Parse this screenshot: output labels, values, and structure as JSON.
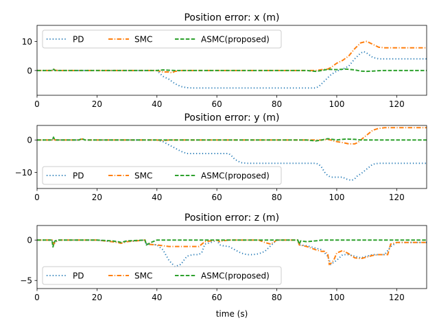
{
  "chart_data": [
    {
      "type": "line",
      "title": "Position error: x (m)",
      "xlabel": "",
      "ylabel": "",
      "xlim": [
        0,
        130
      ],
      "ylim": [
        -8.5,
        15.5
      ],
      "xticks": [
        0,
        20,
        40,
        60,
        80,
        100,
        120
      ],
      "yticks": [
        0,
        10
      ],
      "grid": false,
      "legend": "top-left",
      "series": [
        {
          "name": "PD",
          "style": "dotted",
          "color": "#1f77b4",
          "x": [
            0,
            5,
            5.5,
            6,
            7,
            40,
            41,
            42,
            44,
            46,
            48,
            50,
            52,
            60,
            70,
            80,
            90,
            93,
            94,
            96,
            98,
            100,
            102,
            104,
            106,
            108,
            109,
            110,
            112,
            114,
            116,
            120,
            125,
            130
          ],
          "y": [
            0,
            0,
            0.6,
            0.1,
            0,
            0,
            -1,
            -2,
            -3,
            -4.5,
            -5.5,
            -5.9,
            -6,
            -6,
            -6,
            -6,
            -6,
            -6,
            -5.5,
            -3.5,
            -1.5,
            -0.2,
            0.5,
            1.5,
            4,
            6,
            6.5,
            6,
            4.5,
            4,
            4,
            4,
            4,
            4
          ]
        },
        {
          "name": "SMC",
          "style": "dashdot",
          "color": "#ff7f0e",
          "x": [
            0,
            5,
            5.5,
            6,
            7,
            40,
            42,
            44,
            45,
            46,
            48,
            60,
            80,
            90,
            93,
            95,
            97,
            98,
            100,
            102,
            104,
            106,
            108,
            110,
            112,
            114,
            116,
            120,
            125,
            130
          ],
          "y": [
            0,
            0,
            0.5,
            0.1,
            0,
            0,
            -0.5,
            -0.5,
            -0.8,
            -0.3,
            0,
            0,
            0,
            0,
            0,
            0.3,
            0.5,
            1,
            2.5,
            3.5,
            5,
            7.5,
            9.5,
            10,
            9,
            8,
            7.8,
            7.8,
            7.8,
            7.8
          ]
        },
        {
          "name": "ASMC(proposed)",
          "style": "dashed",
          "color": "#2ca02c",
          "x": [
            0,
            5,
            5.5,
            6,
            7,
            40,
            42,
            44,
            46,
            60,
            80,
            90,
            93,
            95,
            97,
            100,
            103,
            106,
            108,
            110,
            112,
            115,
            120,
            125,
            130
          ],
          "y": [
            0,
            0,
            0.4,
            0,
            0,
            0,
            0.2,
            0.1,
            0,
            0,
            0,
            0,
            -0.3,
            0,
            0.4,
            0.3,
            0.5,
            0.2,
            -0.2,
            -0.3,
            -0.2,
            0,
            0,
            0,
            0
          ]
        }
      ]
    },
    {
      "type": "line",
      "title": "Position error: y (m)",
      "xlabel": "",
      "ylabel": "",
      "xlim": [
        0,
        130
      ],
      "ylim": [
        -15,
        4.5
      ],
      "xticks": [
        0,
        20,
        40,
        60,
        80,
        100,
        120
      ],
      "yticks": [
        -10,
        0
      ],
      "grid": false,
      "legend": "bottom-left",
      "series": [
        {
          "name": "PD",
          "style": "dotted",
          "color": "#1f77b4",
          "x": [
            0,
            5,
            5.5,
            6,
            7,
            14,
            15,
            16,
            40,
            42,
            44,
            46,
            48,
            50,
            52,
            55,
            58,
            62,
            64,
            65,
            66,
            68,
            70,
            72,
            80,
            90,
            93,
            94,
            95,
            96,
            97,
            98,
            100,
            102,
            103,
            104,
            105,
            106,
            107,
            108,
            110,
            112,
            114,
            116,
            120,
            125,
            130
          ],
          "y": [
            0,
            0,
            0.3,
            0,
            0,
            0,
            0.2,
            0,
            0,
            -0.5,
            -1.5,
            -2.5,
            -3.5,
            -4.2,
            -4.2,
            -4.2,
            -4.2,
            -4.2,
            -4.2,
            -5,
            -6,
            -7,
            -7.2,
            -7.2,
            -7.2,
            -7.2,
            -7.2,
            -7.5,
            -8.5,
            -10,
            -11,
            -11.5,
            -11.5,
            -11.5,
            -12,
            -12.3,
            -12.5,
            -12,
            -11,
            -10.5,
            -9,
            -7.5,
            -7.2,
            -7.2,
            -7.2,
            -7.2,
            -7.2
          ]
        },
        {
          "name": "SMC",
          "style": "dashdot",
          "color": "#ff7f0e",
          "x": [
            0,
            5,
            5.5,
            6,
            7,
            14,
            15,
            16,
            40,
            42,
            44,
            60,
            80,
            90,
            95,
            97,
            98,
            99,
            100,
            102,
            104,
            106,
            107,
            108,
            110,
            112,
            114,
            116,
            120,
            125,
            130
          ],
          "y": [
            0,
            0,
            0.3,
            0,
            0,
            0,
            0.3,
            0,
            0,
            -0.2,
            0,
            0,
            0,
            0,
            0,
            0.2,
            0,
            -0.3,
            -0.5,
            -0.8,
            -1.2,
            -1.2,
            -0.8,
            0,
            1.5,
            3,
            3.6,
            3.8,
            3.8,
            3.8,
            3.8
          ]
        },
        {
          "name": "ASMC(proposed)",
          "style": "dashed",
          "color": "#2ca02c",
          "x": [
            0,
            5,
            5.5,
            6,
            7,
            14,
            15,
            16,
            40,
            60,
            80,
            90,
            93,
            95,
            97,
            100,
            103,
            106,
            108,
            110,
            112,
            115,
            120,
            125,
            130
          ],
          "y": [
            0,
            0,
            0.8,
            0,
            0,
            0,
            0.4,
            0,
            0,
            0,
            0,
            0,
            -0.3,
            0,
            0.4,
            0,
            0.3,
            0.2,
            0,
            0,
            0,
            0,
            0,
            0,
            0
          ]
        }
      ]
    },
    {
      "type": "line",
      "title": "Position error: z (m)",
      "xlabel": "time (s)",
      "ylabel": "",
      "xlim": [
        0,
        130
      ],
      "ylim": [
        -6,
        1.8
      ],
      "xticks": [
        0,
        20,
        40,
        60,
        80,
        100,
        120
      ],
      "yticks": [
        -5,
        0
      ],
      "grid": false,
      "legend": "bottom-left",
      "series": [
        {
          "name": "PD",
          "style": "dotted",
          "color": "#1f77b4",
          "x": [
            0,
            5,
            5.5,
            6,
            7,
            20,
            25,
            27,
            28,
            30,
            36,
            36.5,
            40,
            42,
            44,
            46,
            48,
            50,
            52,
            54,
            55,
            56,
            58,
            60,
            61,
            62,
            64,
            66,
            68,
            70,
            72,
            74,
            76,
            78,
            80,
            87,
            87.5,
            90,
            93,
            95,
            97,
            98,
            100,
            102,
            104,
            106,
            108,
            110,
            112,
            114,
            116,
            118,
            120,
            125,
            130
          ],
          "y": [
            0,
            0,
            -0.6,
            -0.3,
            0,
            0,
            -0.2,
            -0.3,
            -0.4,
            -0.2,
            0,
            -0.5,
            -0.6,
            -1.2,
            -2.5,
            -3.3,
            -3,
            -2,
            -1.8,
            -1.8,
            -1.5,
            -0.5,
            -0.3,
            0,
            -0.6,
            -0.7,
            -0.8,
            -1.2,
            -1.6,
            -1.8,
            -1.8,
            -1.7,
            -1.4,
            -0.7,
            0,
            0,
            -0.6,
            -0.7,
            -1,
            -1.2,
            -2,
            -3,
            -2.5,
            -1.8,
            -1.8,
            -2,
            -2.2,
            -2,
            -1.8,
            -1.8,
            -1.8,
            -0.8,
            -0.3,
            -0.3,
            -0.3
          ]
        },
        {
          "name": "SMC",
          "style": "dashdot",
          "color": "#ff7f0e",
          "x": [
            0,
            5,
            5.5,
            6,
            7,
            20,
            25,
            27,
            28,
            30,
            36,
            36.5,
            40,
            42,
            44,
            46,
            48,
            50,
            54,
            56,
            58,
            60,
            61,
            62,
            64,
            66,
            68,
            70,
            72,
            74,
            76,
            78,
            80,
            87,
            87.5,
            90,
            93,
            95,
            96,
            97,
            97.5,
            98,
            99,
            100,
            102,
            104,
            106,
            108,
            110,
            112,
            114,
            116,
            117,
            118,
            120,
            125,
            130
          ],
          "y": [
            0,
            0,
            -0.5,
            -0.3,
            0,
            0,
            -0.2,
            -0.3,
            -0.4,
            -0.2,
            0,
            -0.5,
            -0.6,
            -0.7,
            -0.8,
            -0.8,
            -0.8,
            -0.8,
            -0.8,
            -0.2,
            -0.1,
            0,
            -0.2,
            -0.1,
            0,
            0,
            0,
            0,
            0,
            0,
            -0.3,
            -0.5,
            0,
            0,
            -0.6,
            -0.8,
            -1.2,
            -1.4,
            -1.4,
            -1.7,
            -3,
            -2.9,
            -2.5,
            -1.6,
            -1.3,
            -1.7,
            -2.2,
            -2.3,
            -2.1,
            -1.9,
            -1.8,
            -1.8,
            -1.8,
            -0.5,
            -0.3,
            -0.3,
            -0.3
          ]
        },
        {
          "name": "ASMC(proposed)",
          "style": "dashed",
          "color": "#2ca02c",
          "x": [
            0,
            5,
            5.3,
            5.6,
            6,
            7,
            20,
            25,
            27,
            28,
            30,
            36,
            36.5,
            38,
            40,
            42,
            60,
            80,
            87,
            87.5,
            88,
            90,
            93,
            95,
            97,
            100,
            105,
            110,
            115,
            120,
            125,
            130
          ],
          "y": [
            0,
            0,
            -0.9,
            -0.4,
            -0.1,
            0,
            0,
            -0.1,
            -0.2,
            -0.3,
            -0.1,
            0,
            -0.6,
            -0.3,
            0,
            0,
            0,
            0,
            0,
            -0.5,
            -0.1,
            -0.2,
            -0.1,
            0,
            0,
            0,
            0,
            0,
            0,
            0,
            0,
            0
          ]
        }
      ]
    }
  ]
}
